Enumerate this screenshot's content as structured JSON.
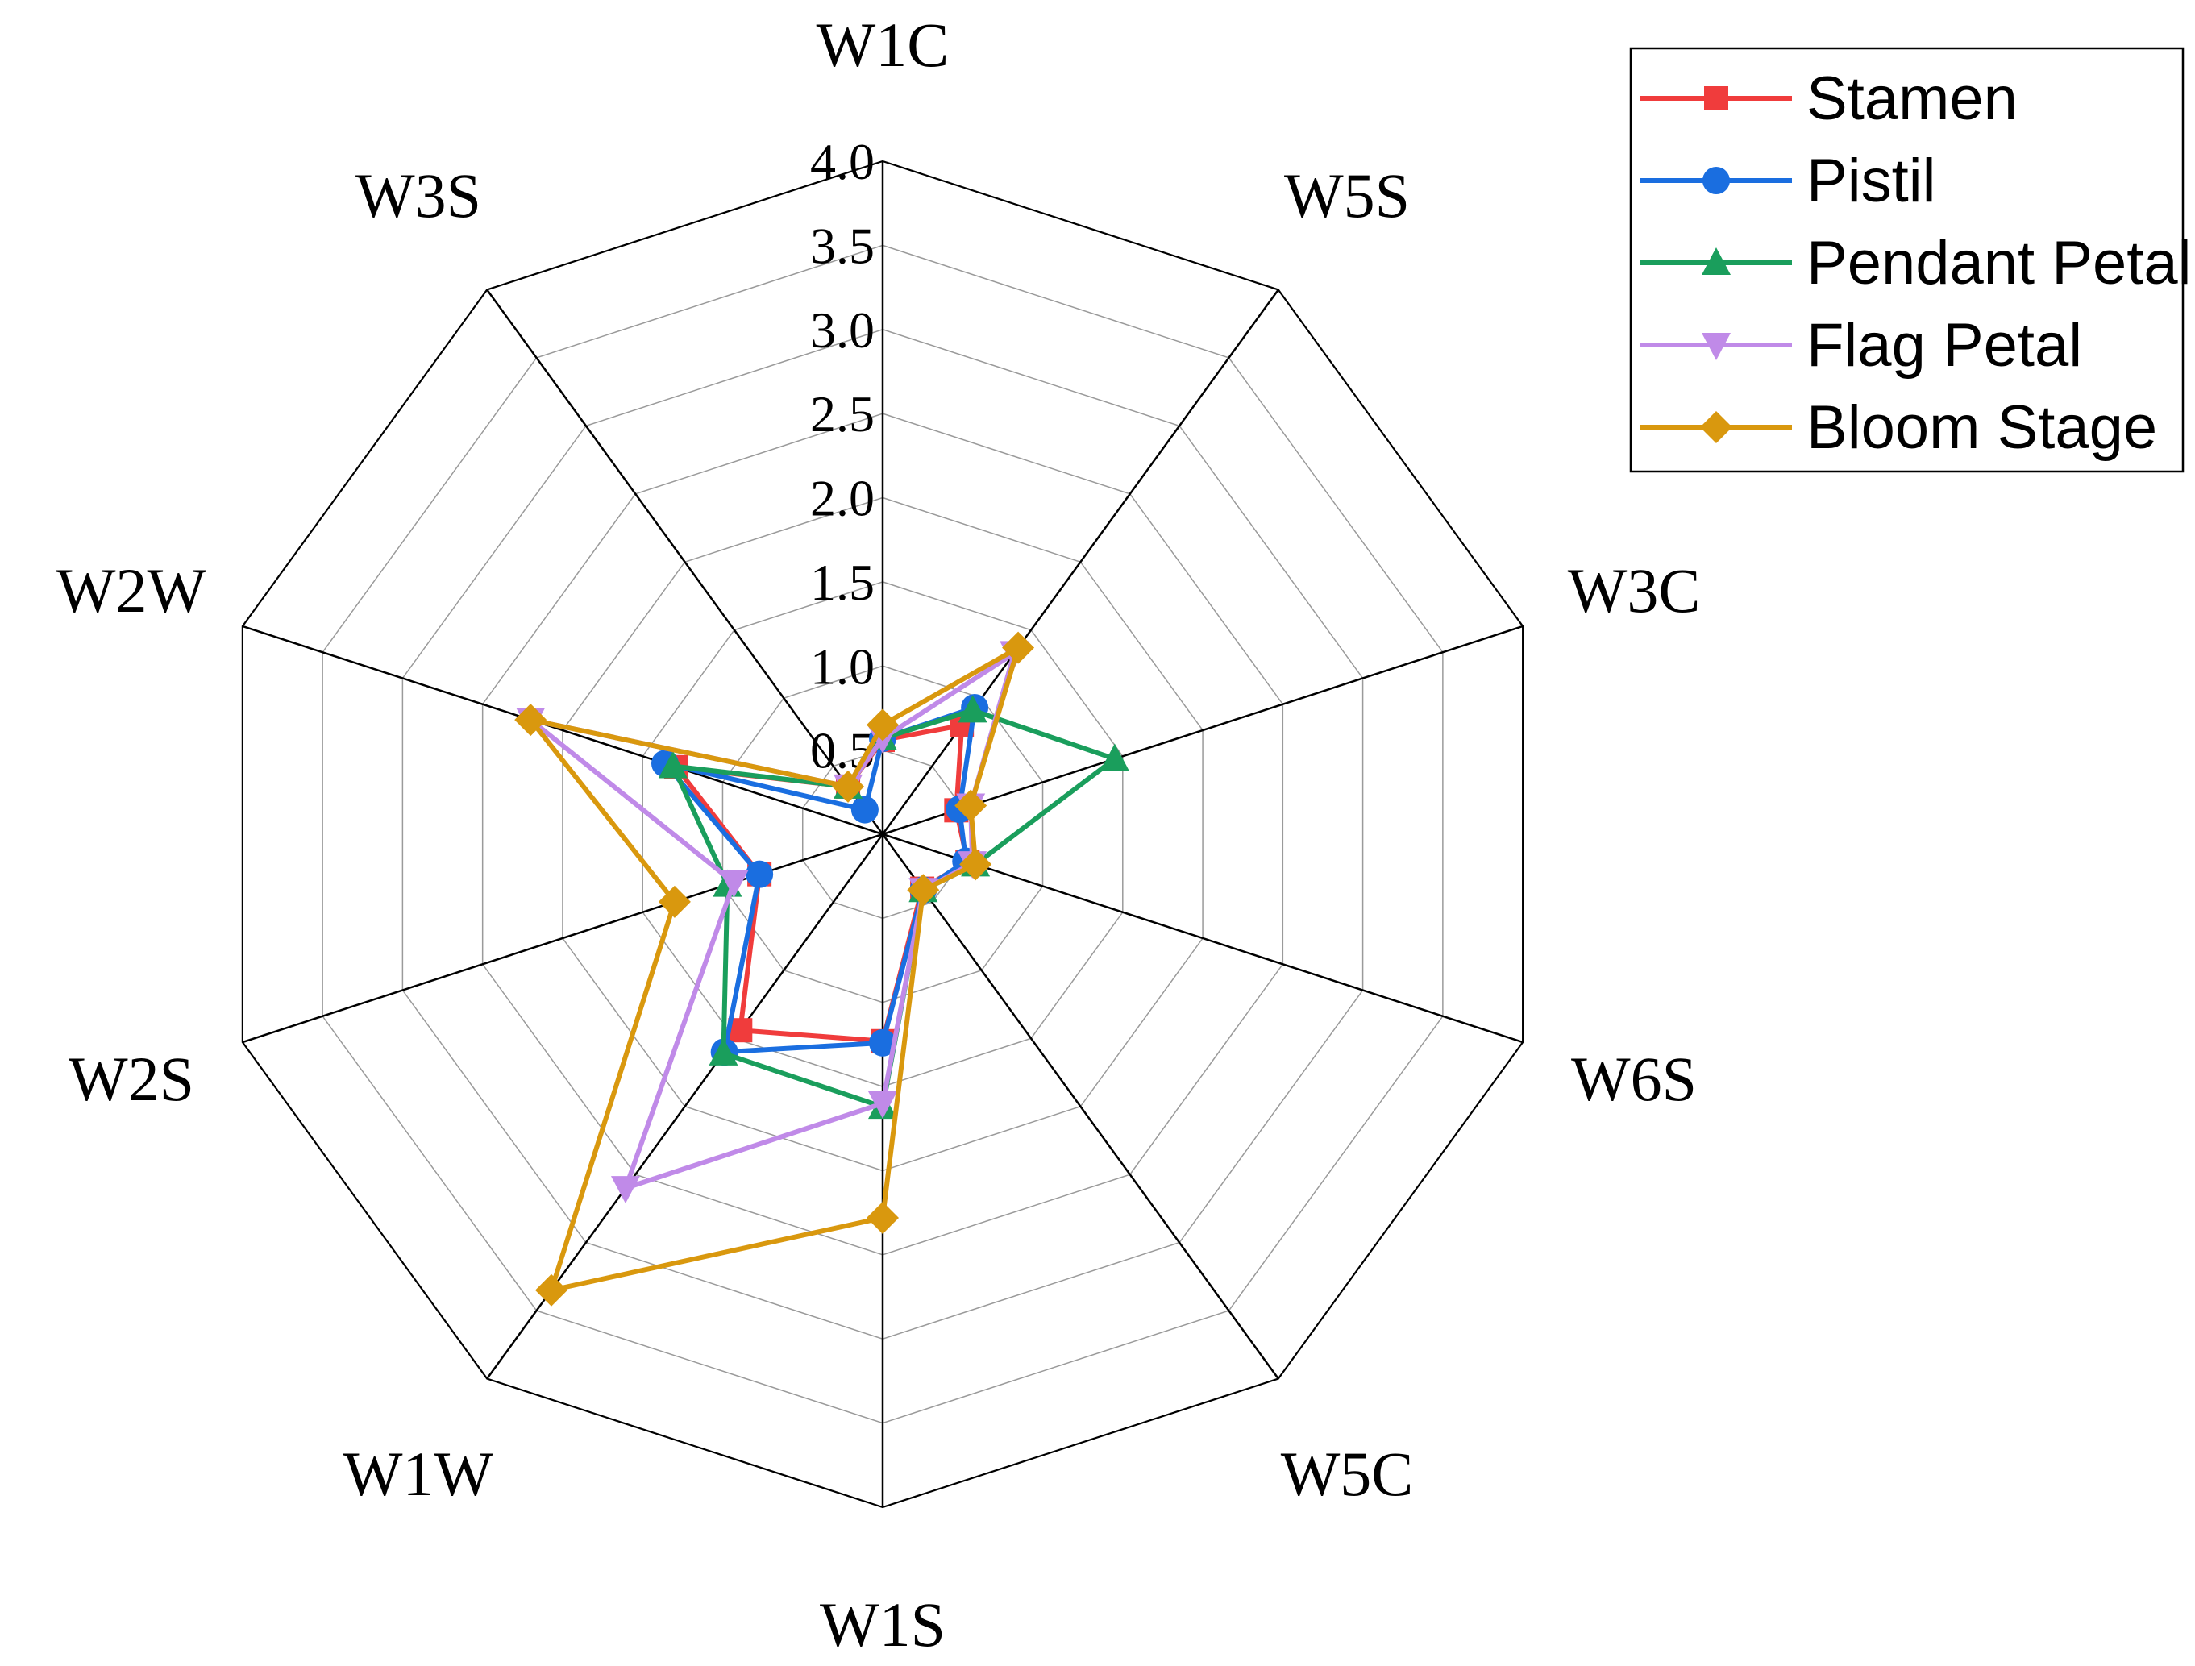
{
  "chart_data": {
    "type": "radar",
    "axes": [
      "W1C",
      "W5S",
      "W3C",
      "W6S",
      "W5C",
      "W1S",
      "W1W",
      "W2S",
      "W2W",
      "W3S"
    ],
    "rlim": [
      0,
      4.0
    ],
    "ticks": [
      0.5,
      1.0,
      1.5,
      2.0,
      2.5,
      3.0,
      3.5,
      4.0
    ],
    "tick_labels": [
      "0.5",
      "1.0",
      "1.5",
      "2.0",
      "2.5",
      "3.0",
      "3.5",
      "4.0"
    ],
    "grid": true,
    "legend_position": "top-right",
    "series": [
      {
        "name": "Stamen",
        "color": "#f03c3c",
        "marker": "square",
        "values": [
          0.56,
          0.8,
          0.46,
          0.53,
          0.4,
          1.23,
          1.44,
          0.77,
          1.29,
          0.35
        ]
      },
      {
        "name": "Pistil",
        "color": "#1a6ee0",
        "marker": "circle",
        "values": [
          0.57,
          0.93,
          0.48,
          0.52,
          0.41,
          1.24,
          1.6,
          0.77,
          1.36,
          0.18
        ]
      },
      {
        "name": "Pendant Petal",
        "color": "#1a9e5c",
        "marker": "triangle-up",
        "values": [
          0.57,
          0.91,
          1.45,
          0.58,
          0.41,
          1.62,
          1.61,
          0.97,
          1.31,
          0.35
        ]
      },
      {
        "name": "Flag Petal",
        "color": "#c08ae8",
        "marker": "triangle-down",
        "values": [
          0.57,
          1.33,
          0.55,
          0.56,
          0.41,
          1.6,
          2.6,
          0.93,
          2.2,
          0.35
        ]
      },
      {
        "name": "Bloom Stage",
        "color": "#d9980e",
        "marker": "diamond",
        "values": [
          0.65,
          1.37,
          0.55,
          0.58,
          0.41,
          2.28,
          3.35,
          1.3,
          2.2,
          0.35
        ]
      }
    ]
  }
}
